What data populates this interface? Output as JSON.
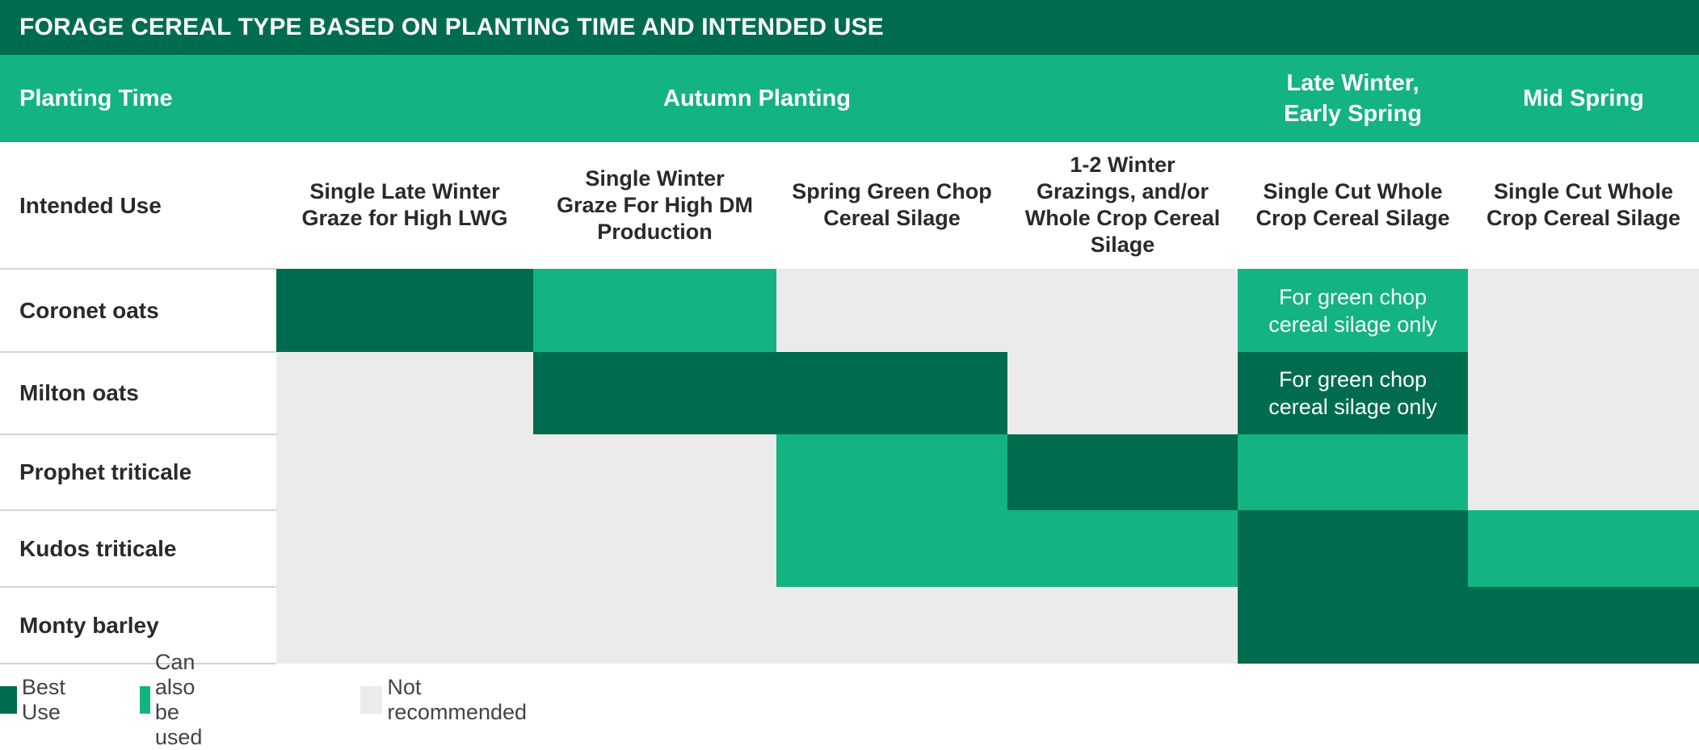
{
  "colors": {
    "best": "#006c4f",
    "also": "#14b382",
    "not": "#ebebeb",
    "title_bg": "#006c4f",
    "header_bg": "#14b382"
  },
  "title": "FORAGE CEREAL TYPE BASED ON PLANTING TIME AND INTENDED USE",
  "planting_time": {
    "label": "Planting Time",
    "groups": [
      {
        "label": "Autumn Planting"
      },
      {
        "label_line1": "Late Winter,",
        "label_line2": "Early Spring"
      },
      {
        "label": "Mid Spring"
      }
    ]
  },
  "intended_use": {
    "label": "Intended Use",
    "columns": [
      {
        "line1": "Single Late Winter",
        "line2": "Graze for High LWG",
        "line3": "",
        "line4": ""
      },
      {
        "line1": "Single Winter",
        "line2": "Graze For High DM",
        "line3": "Production",
        "line4": ""
      },
      {
        "line1": "Spring Green Chop",
        "line2": "Cereal Silage",
        "line3": "",
        "line4": ""
      },
      {
        "line1": "1-2 Winter",
        "line2": "Grazings, and/or",
        "line3": "Whole Crop Cereal",
        "line4": "Silage"
      },
      {
        "line1": "Single Cut Whole",
        "line2": "Crop Cereal Silage",
        "line3": "",
        "line4": ""
      },
      {
        "line1": "Single Cut Whole",
        "line2": "Crop Cereal Silage",
        "line3": "",
        "line4": ""
      }
    ]
  },
  "chart_data": {
    "type": "heatmap",
    "title": "FORAGE CEREAL TYPE BASED ON PLANTING TIME AND INTENDED USE",
    "rows": [
      "Coronet oats",
      "Milton oats",
      "Prophet triticale",
      "Kudos triticale",
      "Monty barley"
    ],
    "columns": [
      "Single Late Winter Graze for High LWG",
      "Single Winter Graze For High DM Production",
      "Spring Green Chop Cereal Silage",
      "1-2 Winter Grazings, and/or Whole Crop Cereal Silage",
      "Single Cut Whole Crop Cereal Silage",
      "Single Cut Whole Crop Cereal Silage"
    ],
    "column_groups": [
      {
        "name": "Autumn Planting",
        "columns": [
          0,
          1,
          2,
          3
        ]
      },
      {
        "name": "Late Winter, Early Spring",
        "columns": [
          4
        ]
      },
      {
        "name": "Mid Spring",
        "columns": [
          5
        ]
      }
    ],
    "levels": {
      "best": "Best Use",
      "also": "Can also be used",
      "not": "Not recommended"
    },
    "values": [
      [
        "best",
        "also",
        "not",
        "not",
        "also",
        "not"
      ],
      [
        "not",
        "best",
        "best",
        "not",
        "best",
        "not"
      ],
      [
        "not",
        "not",
        "also",
        "best",
        "also",
        "not"
      ],
      [
        "not",
        "not",
        "also",
        "also",
        "best",
        "also"
      ],
      [
        "not",
        "not",
        "not",
        "not",
        "best",
        "best"
      ]
    ],
    "notes": [
      {
        "row": 0,
        "col": 4,
        "line1": "For green chop",
        "line2": "cereal silage only"
      },
      {
        "row": 1,
        "col": 4,
        "line1": "For green chop",
        "line2": "cereal silage only"
      }
    ]
  },
  "legend": [
    {
      "key": "best",
      "label": "Best Use"
    },
    {
      "key": "also",
      "label": "Can also be used"
    },
    {
      "key": "not",
      "label": "Not recommended"
    }
  ]
}
